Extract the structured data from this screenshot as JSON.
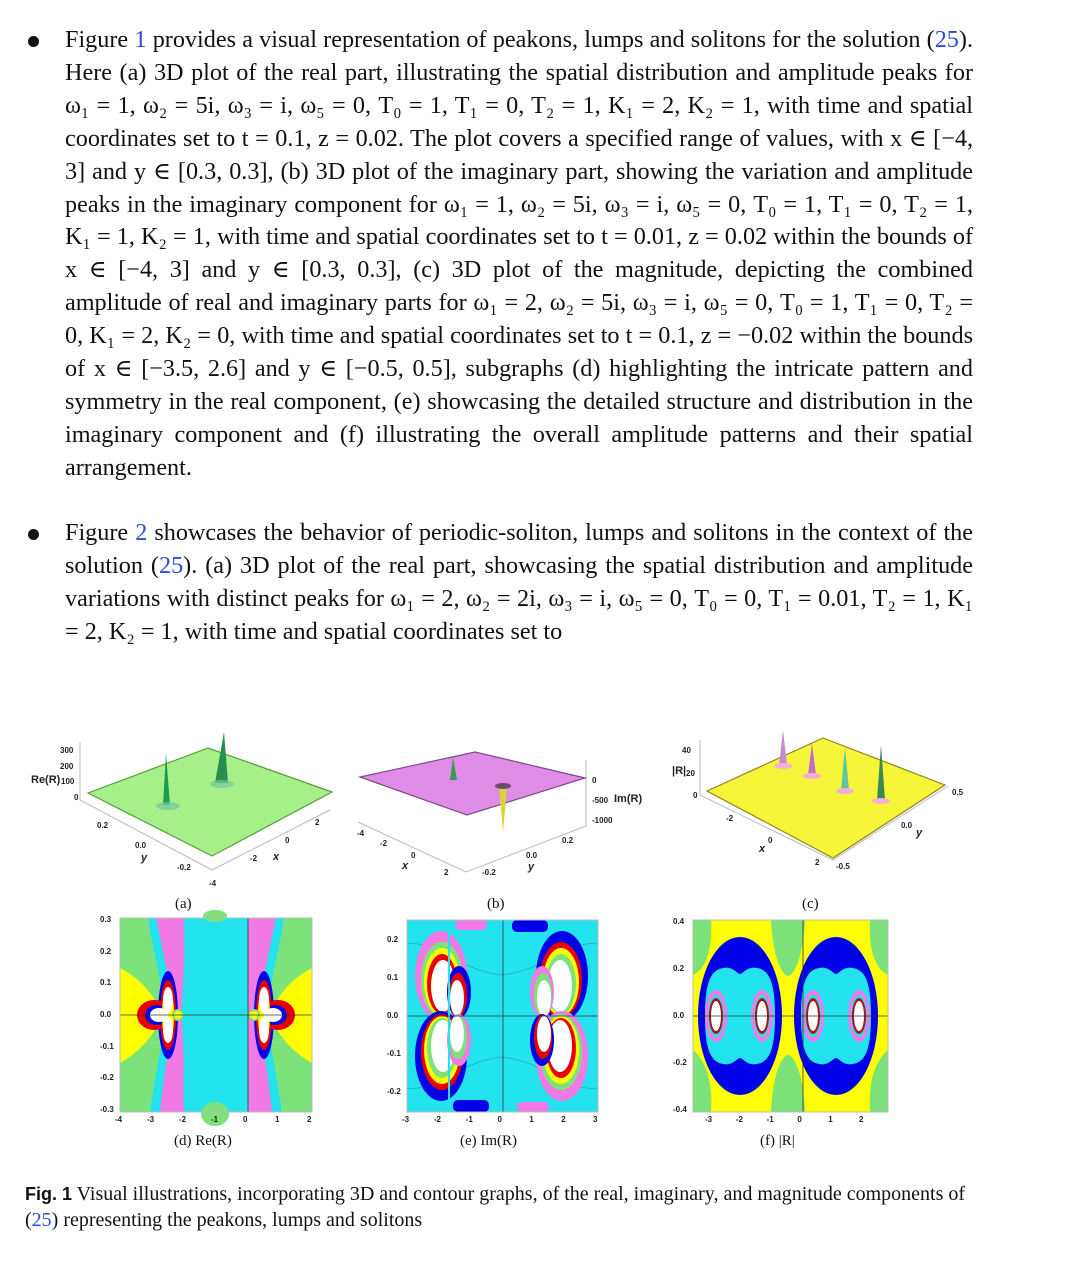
{
  "paragraphs": [
    {
      "segments": [
        {
          "text": "Figure "
        },
        {
          "text": "1",
          "link": true
        },
        {
          "text": " provides a visual representation of peakons, lumps and solitons for the solution ("
        },
        {
          "text": "25",
          "link": true
        },
        {
          "text": "). Here (a) 3D plot of the real part, illustrating the spatial distribution and amplitude peaks for ω₁ = 1, ω₂ = 5i, ω₃ = i, ω₅ = 0, T₀ = 1, T₁ = 0, T₂ = 1, K₁ = 2, K₂ = 1, with time and spatial coordinates set to t = 0.1, z = 0.02. The plot covers a specified range of values, with x ∈ [−4, 3] and y ∈ [0.3, 0.3], (b) 3D plot of the imaginary part, showing the variation and amplitude peaks in the imaginary component for ω₁ = 1, ω₂ = 5i, ω₃ = i, ω₅ = 0, T₀ = 1, T₁ = 0, T₂ = 1, K₁ = 1, K₂ = 1, with time and spatial coordinates set to t = 0.01, z = 0.02 within the bounds of x ∈ [−4, 3] and y ∈ [0.3, 0.3], (c) 3D plot of the magnitude, depicting the combined amplitude of real and imaginary parts for ω₁ = 2, ω₂ = 5i, ω₃ = i, ω₅ = 0, T₀ = 1, T₁ = 0, T₂ = 0, K₁ = 2, K₂ = 0, with time and spatial coordinates set to t = 0.1, z = −0.02 within the bounds of x ∈ [−3.5, 2.6] and y ∈ [−0.5, 0.5], subgraphs (d) highlighting the intricate pattern and symmetry in the real component, (e) showcasing the detailed structure and distribution in the imaginary component and (f) illustrating the overall amplitude patterns and their spatial arrangement."
        }
      ]
    },
    {
      "segments": [
        {
          "text": "Figure "
        },
        {
          "text": "2",
          "link": true
        },
        {
          "text": " showcases the behavior of periodic-soliton, lumps and solitons in the context of the solution ("
        },
        {
          "text": "25",
          "link": true
        },
        {
          "text": "). (a) 3D plot of the real part, showcasing the spatial distribution and amplitude variations with distinct peaks for ω₁ = 2, ω₂ = 2i, ω₃ = i, ω₅ = 0, T₀ = 0, T₁ = 0.01, T₂ = 1, K₁ = 2, K₂ = 1, with time and spatial coordinates set to"
        }
      ]
    }
  ],
  "figure": {
    "panels3d": [
      {
        "id": "a",
        "label": "(a)",
        "zlabel": "Re(R)",
        "zticks": [
          "300",
          "200",
          "100",
          "0"
        ],
        "xlabel": "x",
        "xticks": [
          "-4",
          "-2",
          "0",
          "2"
        ],
        "ylabel": "y",
        "yticks": [
          "0.2",
          "0.0",
          "-0.2"
        ],
        "surface_color": "#a6f08a"
      },
      {
        "id": "b",
        "label": "(b)",
        "zlabel": "Im(R)",
        "zticks": [
          "0",
          "-500",
          "-1000"
        ],
        "xlabel": "x",
        "xticks": [
          "-4",
          "-2",
          "0",
          "2"
        ],
        "ylabel": "y",
        "yticks": [
          "-0.2",
          "0.0",
          "0.2"
        ],
        "surface_color": "#df8de6"
      },
      {
        "id": "c",
        "label": "(c)",
        "zlabel": "|R|",
        "zticks": [
          "40",
          "20",
          "0"
        ],
        "xlabel": "x",
        "xticks": [
          "-2",
          "0",
          "2"
        ],
        "ylabel": "y",
        "yticks": [
          "-0.5",
          "0.0",
          "0.5"
        ],
        "surface_color": "#f7f53a"
      }
    ],
    "contours": [
      {
        "id": "d",
        "label": "(d) Re(R)",
        "xticks": [
          "-4",
          "-3",
          "-2",
          "-1",
          "0",
          "1",
          "2"
        ],
        "yticks": [
          "0.3",
          "0.2",
          "0.1",
          "0.0",
          "-0.1",
          "-0.2",
          "-0.3"
        ]
      },
      {
        "id": "e",
        "label": "(e) Im(R)",
        "xticks": [
          "-3",
          "-2",
          "-1",
          "0",
          "1",
          "2",
          "3"
        ],
        "yticks": [
          "0.2",
          "0.1",
          "0.0",
          "-0.1",
          "-0.2"
        ]
      },
      {
        "id": "f",
        "label": "(f) |R|",
        "xticks": [
          "-3",
          "-2",
          "-1",
          "0",
          "1",
          "2"
        ],
        "yticks": [
          "0.4",
          "0.2",
          "0.0",
          "-0.2",
          "-0.4"
        ]
      }
    ],
    "colors": {
      "green": "#7de27a",
      "cyan": "#23e3ef",
      "magenta": "#f17ae6",
      "yellow": "#ffff00",
      "blue": "#0000e6",
      "red": "#ea0000",
      "white": "#ffffff"
    }
  },
  "caption": {
    "fig_label": "Fig. 1",
    "text_before": " Visual illustrations, incorporating 3D and contour graphs, of the real, imaginary, and magnitude components of (",
    "link": "25",
    "text_after": ") representing the peakons, lumps and solitons"
  }
}
